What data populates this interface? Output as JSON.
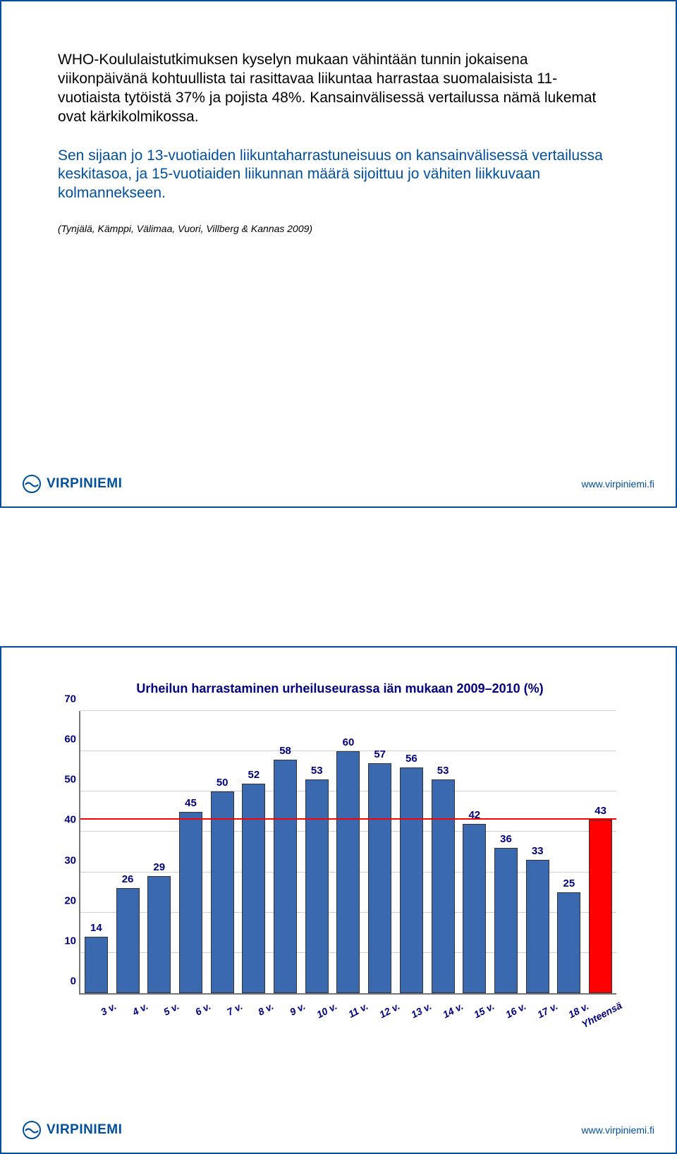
{
  "slide1": {
    "para1": "WHO-Koululaistutkimuksen kyselyn mukaan vähintään tunnin jokaisena viikonpäivänä kohtuullista tai rasittavaa liikuntaa harrastaa suomalaisista 11-vuotiaista tytöistä 37% ja pojista 48%. Kansainvälisessä vertailussa nämä lukemat ovat kärkikolmikossa.",
    "para2": "Sen sijaan jo 13-vuotiaiden liikuntaharrastuneisuus on kansainvälisessä vertailussa keskitasoa, ja 15-vuotiaiden liikunnan määrä sijoittuu jo vähiten liikkuvaan kolmannekseen.",
    "citation": "(Tynjälä, Kämppi, Välimaa, Vuori, Villberg & Kannas 2009)"
  },
  "chart": {
    "title": "Urheilun harrastaminen urheiluseurassa iän mukaan 2009–2010 (%)",
    "y_max": 70,
    "y_ticks": [
      0,
      10,
      20,
      30,
      40,
      50,
      60,
      70
    ],
    "reference_line_value": 43,
    "reference_line_color": "#ff0000",
    "grid_color": "#cfcfcf",
    "axis_color": "#777777",
    "title_color": "#000080",
    "label_color": "#000080",
    "bar_border_color": "#333333",
    "categories": [
      {
        "label": "3 v.",
        "value": 14,
        "color": "#3b69b0"
      },
      {
        "label": "4 v.",
        "value": 26,
        "color": "#3b69b0"
      },
      {
        "label": "5 v.",
        "value": 29,
        "color": "#3b69b0"
      },
      {
        "label": "6 v.",
        "value": 45,
        "color": "#3b69b0"
      },
      {
        "label": "7 v.",
        "value": 50,
        "color": "#3b69b0"
      },
      {
        "label": "8 v.",
        "value": 52,
        "color": "#3b69b0"
      },
      {
        "label": "9 v.",
        "value": 58,
        "color": "#3b69b0"
      },
      {
        "label": "10 v.",
        "value": 53,
        "color": "#3b69b0"
      },
      {
        "label": "11 v.",
        "value": 60,
        "color": "#3b69b0"
      },
      {
        "label": "12 v.",
        "value": 57,
        "color": "#3b69b0"
      },
      {
        "label": "13 v.",
        "value": 56,
        "color": "#3b69b0"
      },
      {
        "label": "14 v.",
        "value": 53,
        "color": "#3b69b0"
      },
      {
        "label": "15 v.",
        "value": 42,
        "color": "#3b69b0"
      },
      {
        "label": "16 v.",
        "value": 36,
        "color": "#3b69b0"
      },
      {
        "label": "17 v.",
        "value": 33,
        "color": "#3b69b0"
      },
      {
        "label": "18 v.",
        "value": 25,
        "color": "#3b69b0"
      },
      {
        "label": "Yhteensä",
        "value": 43,
        "color": "#ff0000"
      }
    ]
  },
  "footer": {
    "brand": "VIRPINIEMI",
    "url": "www.virpiniemi.fi",
    "brand_color": "#004f9e"
  }
}
